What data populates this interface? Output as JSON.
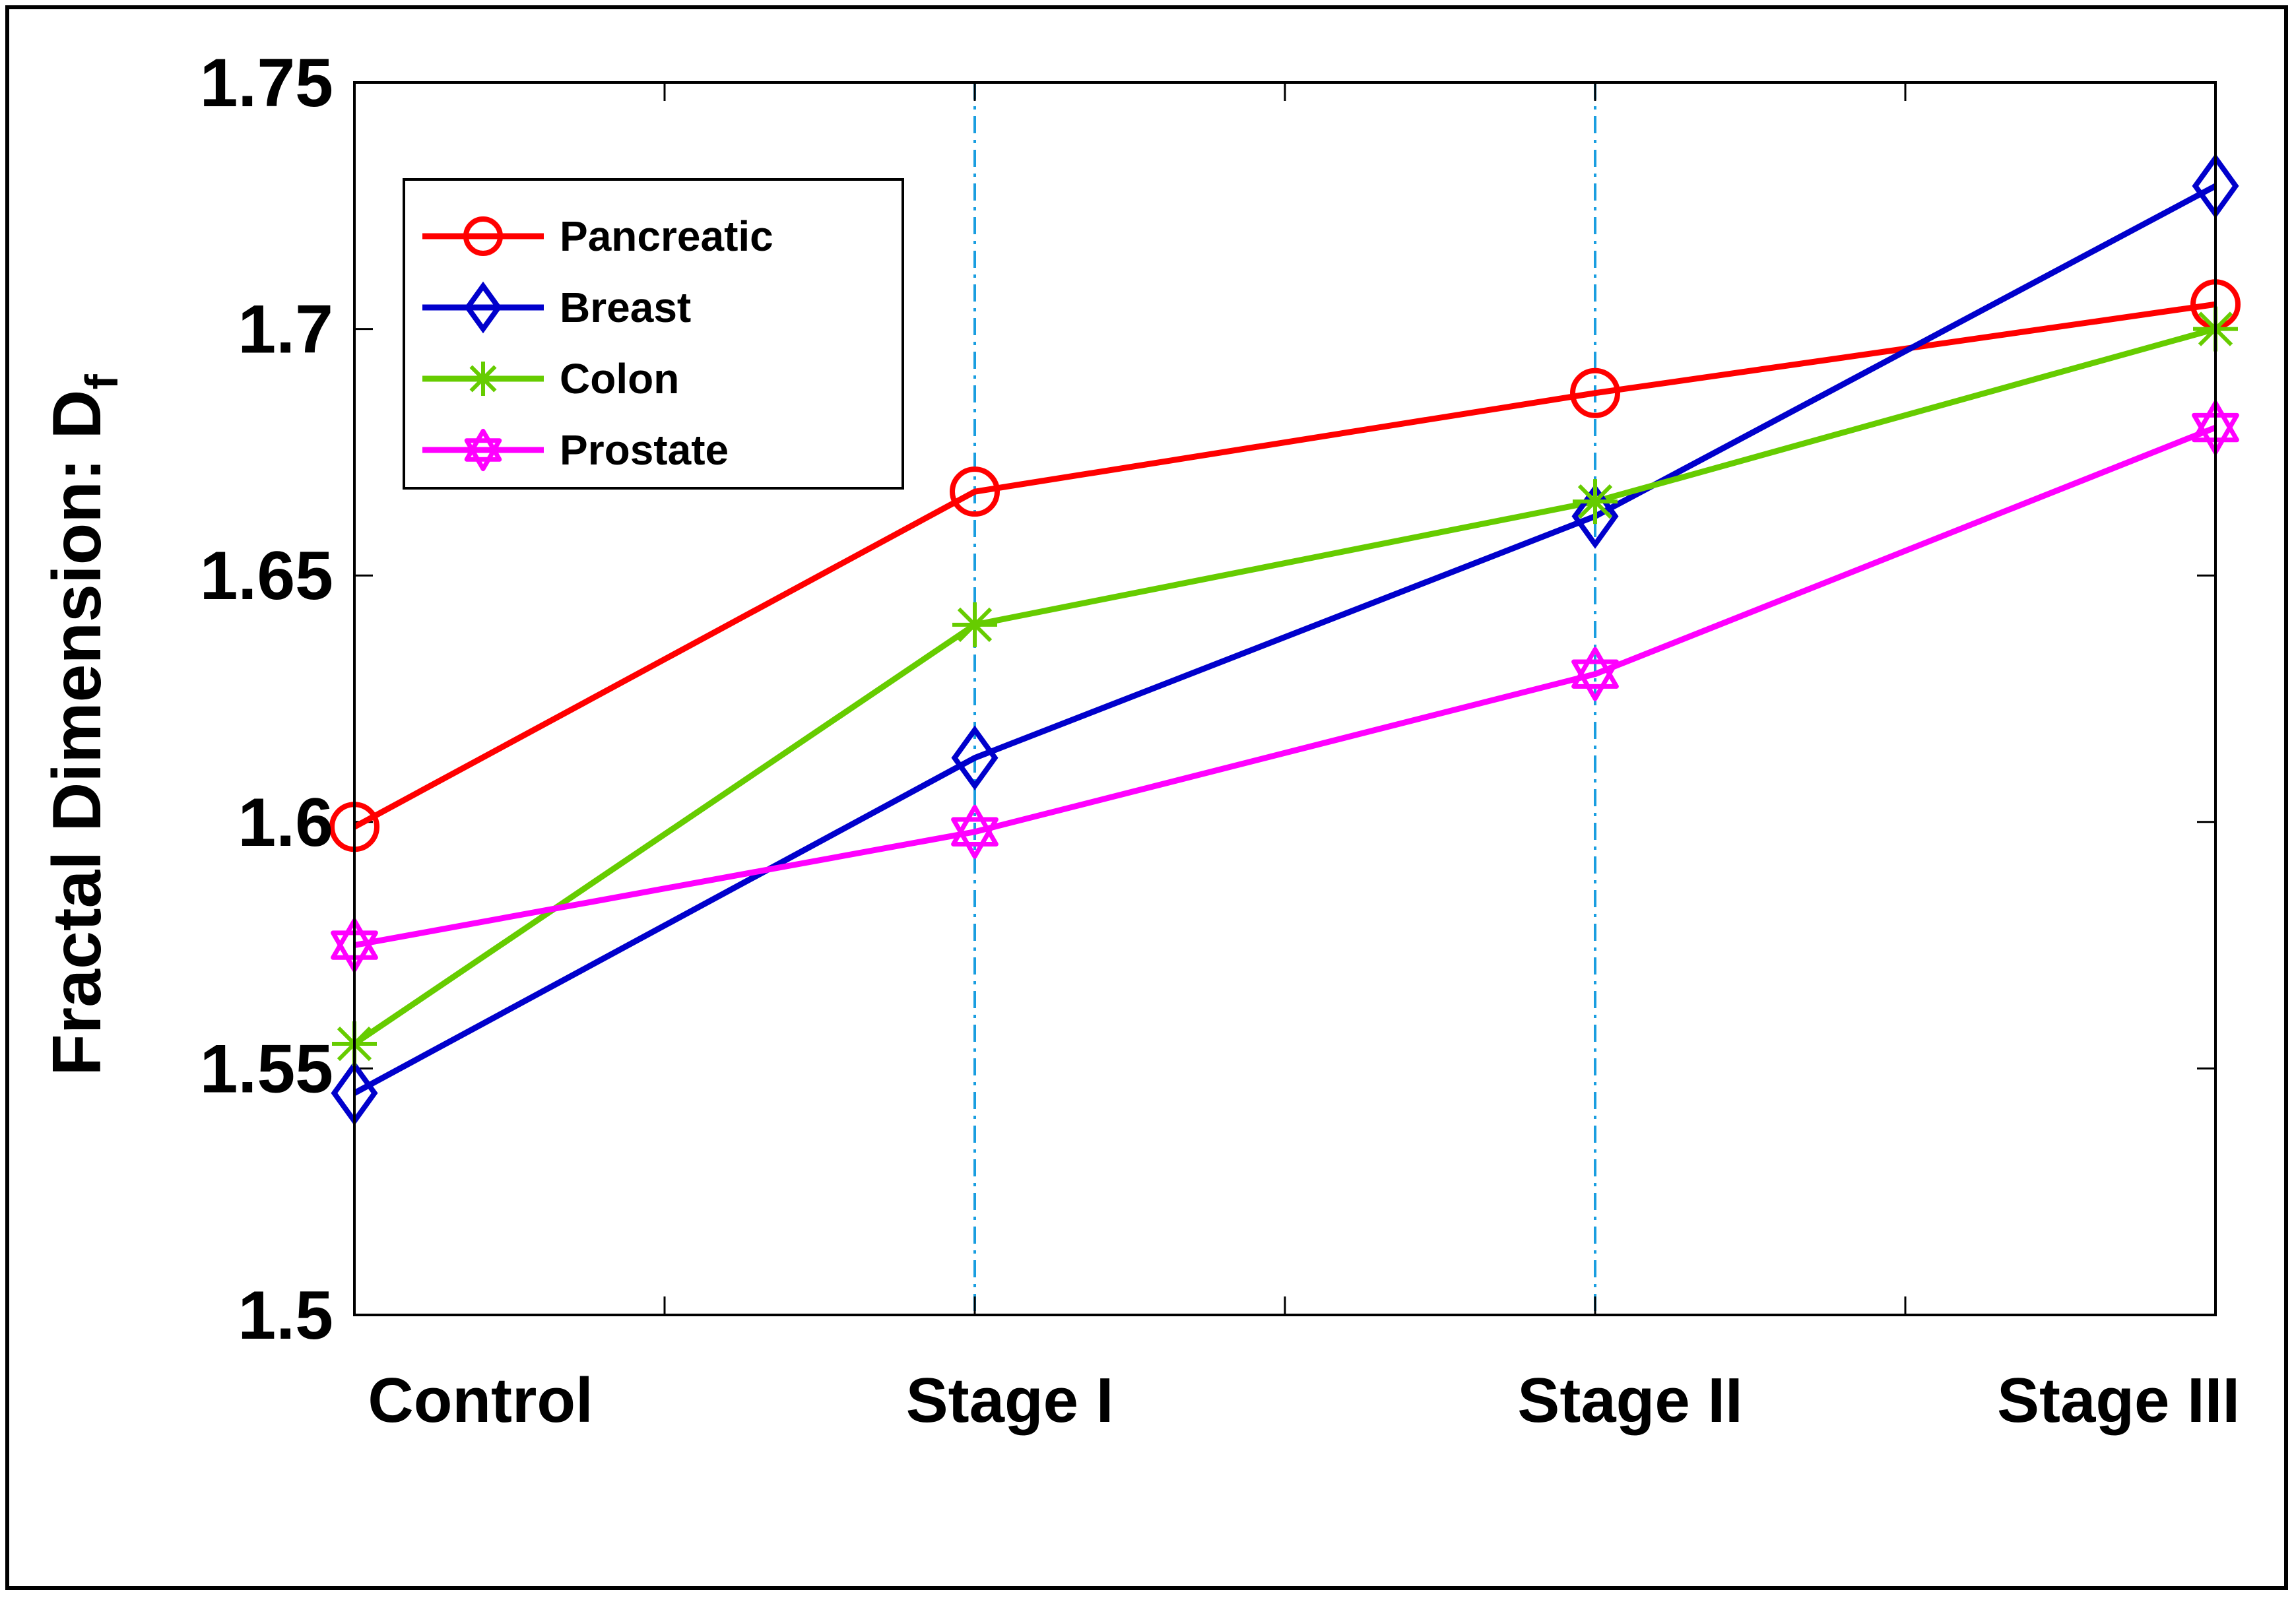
{
  "chart_data": {
    "type": "line",
    "categories": [
      "Control",
      "Stage I",
      "Stage II",
      "Stage III"
    ],
    "x": [
      0,
      1,
      2,
      3
    ],
    "ylabel": "Fractal Dimension: D",
    "ylabel_subscript": "f",
    "ylim": [
      1.5,
      1.75
    ],
    "yticks": [
      1.5,
      1.55,
      1.6,
      1.65,
      1.7,
      1.75
    ],
    "ytick_labels": [
      "1.5",
      "1.55",
      "1.6",
      "1.65",
      "1.7",
      "1.75"
    ],
    "grid": false,
    "legend_position": "top-left",
    "vertical_reference_lines_at": [
      "Stage I",
      "Stage II"
    ],
    "series": [
      {
        "name": "Pancreatic",
        "color": "#ff0000",
        "marker": "circle",
        "values": [
          1.599,
          1.667,
          1.687,
          1.705
        ]
      },
      {
        "name": "Breast",
        "color": "#0000cc",
        "marker": "diamond",
        "values": [
          1.545,
          1.613,
          1.662,
          1.729
        ]
      },
      {
        "name": "Colon",
        "color": "#66cc00",
        "marker": "asterisk",
        "values": [
          1.555,
          1.64,
          1.665,
          1.7
        ]
      },
      {
        "name": "Prostate",
        "color": "#ff00ff",
        "marker": "hexagram",
        "values": [
          1.575,
          1.598,
          1.63,
          1.68
        ]
      }
    ]
  }
}
